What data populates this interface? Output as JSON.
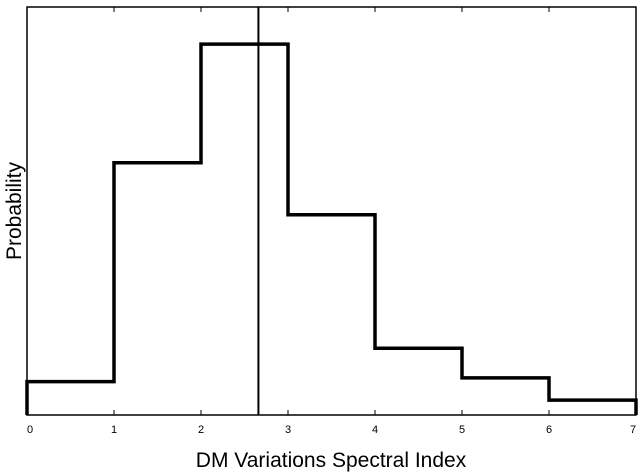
{
  "chart_data": {
    "type": "histogram",
    "xlabel": "DM Variations Spectral Index",
    "ylabel": "Probability",
    "xlim": [
      0,
      7
    ],
    "ylim": [
      0,
      1.1
    ],
    "x_ticks": [
      "0",
      "1",
      "2",
      "3",
      "4",
      "5",
      "6",
      "7"
    ],
    "y_ticks": [],
    "bin_edges": [
      0,
      1,
      2,
      3,
      4,
      5,
      6,
      7
    ],
    "values": [
      0.09,
      0.68,
      1.0,
      0.54,
      0.18,
      0.1,
      0.04
    ],
    "vertical_line_x": 2.66,
    "grid": false,
    "colors": {
      "line": "#000000",
      "background": "#ffffff"
    }
  }
}
